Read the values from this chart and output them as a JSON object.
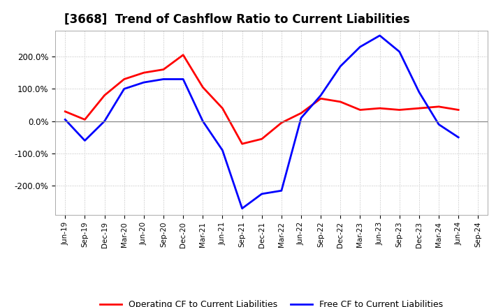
{
  "title": "[3668]  Trend of Cashflow Ratio to Current Liabilities",
  "x_labels": [
    "Jun-19",
    "Sep-19",
    "Dec-19",
    "Mar-20",
    "Jun-20",
    "Sep-20",
    "Dec-20",
    "Mar-21",
    "Jun-21",
    "Sep-21",
    "Dec-21",
    "Mar-22",
    "Jun-22",
    "Sep-22",
    "Dec-22",
    "Mar-23",
    "Jun-23",
    "Sep-23",
    "Dec-23",
    "Mar-24",
    "Jun-24",
    "Sep-24"
  ],
  "operating_cf": [
    30,
    5,
    80,
    130,
    150,
    160,
    205,
    105,
    40,
    -70,
    -55,
    -5,
    25,
    70,
    60,
    35,
    40,
    35,
    40,
    45,
    35,
    null
  ],
  "free_cf": [
    5,
    -60,
    0,
    100,
    120,
    130,
    130,
    0,
    -90,
    -270,
    -225,
    -215,
    10,
    80,
    170,
    230,
    265,
    215,
    90,
    -10,
    -50,
    null
  ],
  "ylim": [
    -290,
    280
  ],
  "yticks": [
    -200,
    -100,
    0,
    100,
    200
  ],
  "ytick_labels": [
    "-200.0%",
    "-100.0%",
    "0.0%",
    "100.0%",
    "200.0%"
  ],
  "operating_color": "#ff0000",
  "free_color": "#0000ff",
  "legend_labels": [
    "Operating CF to Current Liabilities",
    "Free CF to Current Liabilities"
  ],
  "background_color": "#ffffff",
  "plot_bg_color": "#ffffff",
  "grid_color": "#bbbbbb",
  "linewidth": 2.0,
  "title_fontsize": 12
}
